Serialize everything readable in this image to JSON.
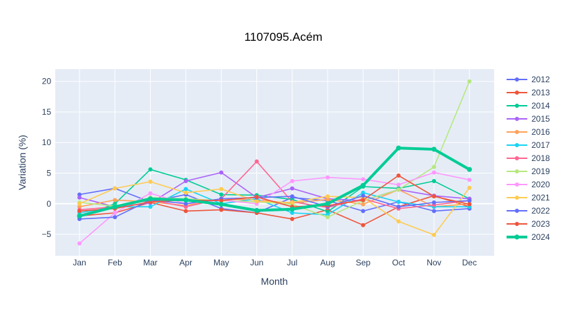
{
  "chart_data": {
    "type": "line",
    "title": "1107095.Acém",
    "xlabel": "Month",
    "ylabel": "Variation (%)",
    "categories": [
      "Jan",
      "Feb",
      "Mar",
      "Apr",
      "May",
      "Jun",
      "Jul",
      "Aug",
      "Sep",
      "Oct",
      "Nov",
      "Dec"
    ],
    "ylim": [
      -8.5,
      22
    ],
    "yticks": [
      -5,
      0,
      5,
      10,
      15,
      20
    ],
    "grid": true,
    "legend": "right",
    "series": [
      {
        "name": "2012",
        "color": "#636efa",
        "values": [
          1.5,
          2.5,
          0.3,
          1.5,
          -0.8,
          -1.5,
          1.0,
          0.5,
          -1.2,
          0.3,
          -1.2,
          -0.8
        ]
      },
      {
        "name": "2013",
        "color": "#EF553B",
        "values": [
          -2.0,
          -1.5,
          0.2,
          -1.2,
          -1.0,
          -1.5,
          -2.5,
          -1.0,
          -3.5,
          -0.5,
          1.3,
          -0.5
        ]
      },
      {
        "name": "2014",
        "color": "#00cc96",
        "values": [
          -2.2,
          0.0,
          5.6,
          3.9,
          1.5,
          1.4,
          0.7,
          -1.3,
          2.8,
          2.5,
          3.7,
          0.8
        ]
      },
      {
        "name": "2015",
        "color": "#ab63fa",
        "values": [
          1.0,
          -0.5,
          0.1,
          3.7,
          5.1,
          1.0,
          2.5,
          0.8,
          0.5,
          2.3,
          1.3,
          0.8
        ]
      },
      {
        "name": "2016",
        "color": "#FFA15A",
        "values": [
          -0.5,
          0.6,
          0.3,
          -0.3,
          0.8,
          0.6,
          0.1,
          0.7,
          -0.1,
          2.3,
          -0.5,
          0.0
        ]
      },
      {
        "name": "2017",
        "color": "#19d3f3",
        "values": [
          -1.5,
          -0.5,
          -0.5,
          2.4,
          0.0,
          0.8,
          -1.5,
          -1.8,
          1.8,
          0.3,
          -0.5,
          -0.5
        ]
      },
      {
        "name": "2018",
        "color": "#FF6692",
        "values": [
          -1.0,
          -0.5,
          0.6,
          -0.5,
          0.8,
          6.9,
          0.3,
          -0.6,
          0.8,
          -0.8,
          -0.2,
          0.5
        ]
      },
      {
        "name": "2019",
        "color": "#B6E880",
        "values": [
          0.2,
          -0.4,
          1.0,
          0.8,
          0.5,
          0.3,
          -0.1,
          -2.2,
          0.5,
          2.3,
          6.0,
          20.0
        ]
      },
      {
        "name": "2020",
        "color": "#FF97FF",
        "values": [
          -6.5,
          -1.5,
          1.7,
          0.0,
          0.6,
          0.0,
          3.7,
          4.3,
          4.0,
          3.1,
          5.1,
          3.9
        ]
      },
      {
        "name": "2021",
        "color": "#FECB52",
        "values": [
          0.0,
          2.5,
          3.6,
          1.8,
          2.4,
          0.4,
          0.2,
          1.2,
          1.0,
          -2.9,
          -5.1,
          2.6
        ]
      },
      {
        "name": "2022",
        "color": "#636efa",
        "values": [
          -2.5,
          -2.2,
          0.6,
          0.0,
          0.8,
          1.0,
          1.2,
          -0.5,
          1.3,
          -0.5,
          0.2,
          0.5
        ]
      },
      {
        "name": "2023",
        "color": "#EF553B",
        "values": [
          -1.2,
          -0.8,
          0.3,
          0.6,
          0.5,
          1.1,
          -0.5,
          -0.3,
          0.6,
          4.6,
          1.2,
          -0.1
        ]
      },
      {
        "name": "2024",
        "color": "#00cc96",
        "highlight": true,
        "values": [
          -2.0,
          -0.5,
          0.8,
          0.6,
          -0.1,
          -1.1,
          -0.9,
          0.0,
          3.0,
          9.1,
          8.9,
          5.6
        ]
      }
    ]
  }
}
